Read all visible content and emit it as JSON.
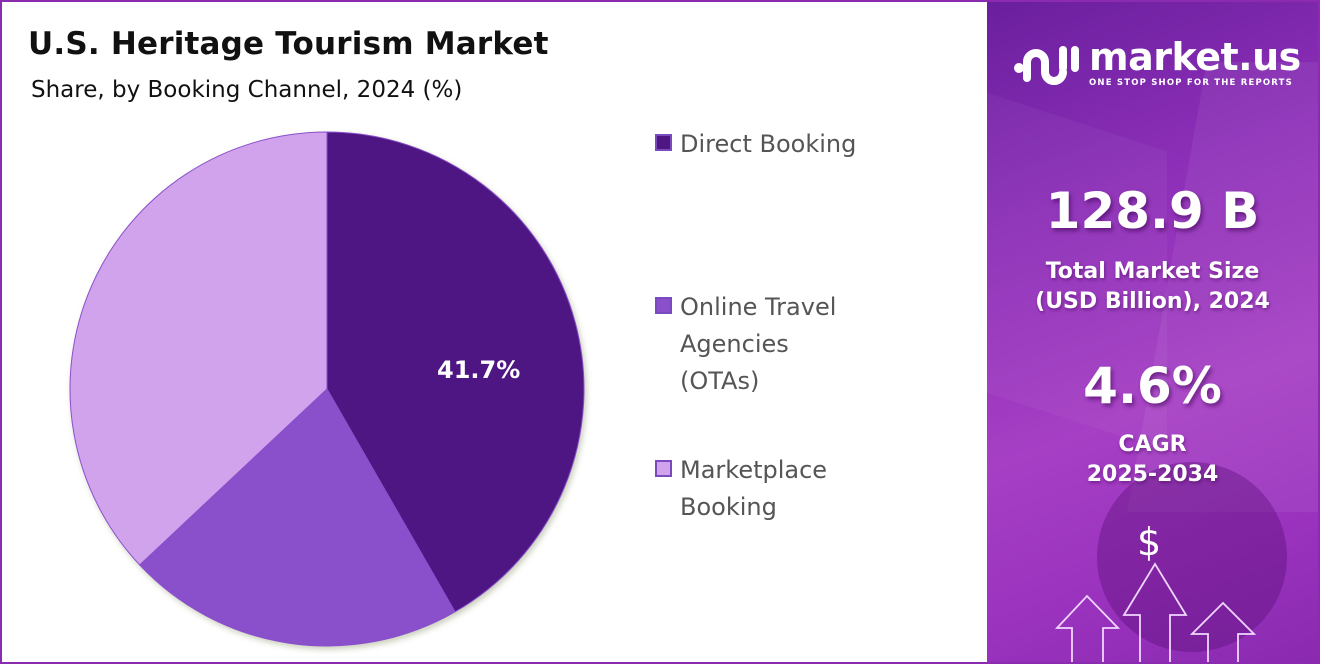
{
  "header": {
    "title": "U.S. Heritage Tourism  Market",
    "subtitle": "Share, by Booking Channel, 2024 (%)"
  },
  "legend": {
    "items": [
      {
        "label": "Direct Booking",
        "color": "#4e1783"
      },
      {
        "label": "Online Travel Agencies (OTAs)",
        "color": "#8a4fcb"
      },
      {
        "label": "Marketplace Booking",
        "color": "#d1a3ec"
      }
    ]
  },
  "pie_label": "41.7%",
  "sidebar": {
    "brand": "market.us",
    "tagline": "ONE STOP SHOP FOR THE REPORTS",
    "market_size_value": "128.9 B",
    "market_size_label_1": "Total Market Size",
    "market_size_label_2": "(USD Billion), 2024",
    "cagr_value": "4.6%",
    "cagr_label_1": "CAGR",
    "cagr_label_2": "2025-2034",
    "currency_symbol": "$"
  },
  "chart_data": {
    "type": "pie",
    "title": "U.S. Heritage Tourism  Market",
    "subtitle": "Share, by Booking Channel, 2024 (%)",
    "categories": [
      "Direct Booking",
      "Online Travel Agencies (OTAs)",
      "Marketplace Booking"
    ],
    "values": [
      41.7,
      21.3,
      37.0
    ],
    "value_labels": [
      "41.7%",
      "",
      ""
    ],
    "colors": [
      "#4e1783",
      "#8a4fcb",
      "#d1a3ec"
    ],
    "start_angle_deg": 0,
    "direction": "clockwise",
    "legend_position": "right",
    "notes": "Only Direct Booking (41.7%) is labeled; OTA and Marketplace values are estimated from slice angles."
  }
}
